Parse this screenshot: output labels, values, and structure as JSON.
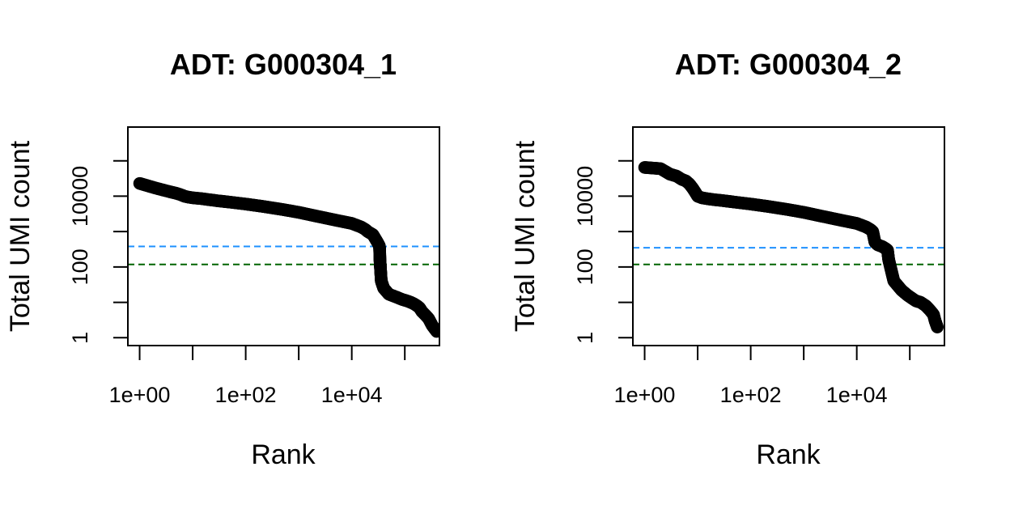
{
  "chart_data": [
    {
      "type": "scatter",
      "title": "ADT: G000304_1",
      "xlabel": "Rank",
      "ylabel": "Total UMI count",
      "x_log": true,
      "y_log": true,
      "xlim": [
        0.6,
        450000
      ],
      "ylim": [
        0.6,
        900000
      ],
      "x_ticks": [
        1,
        10,
        100,
        1000,
        10000,
        100000
      ],
      "x_tick_labels": [
        "1e+00",
        "",
        "1e+02",
        "",
        "1e+04",
        ""
      ],
      "y_ticks": [
        1,
        10,
        100,
        1000,
        10000,
        100000
      ],
      "y_tick_labels": [
        "1",
        "",
        "100",
        "",
        "10000",
        ""
      ],
      "thresholds": [
        {
          "value": 380,
          "color": "#1e90ff",
          "style": "dashed"
        },
        {
          "value": 118,
          "color": "#006400",
          "style": "dashed"
        }
      ],
      "series": [
        {
          "marker": "open-circle",
          "color": "#000000",
          "x": [
            1,
            2,
            3,
            4,
            5,
            6,
            7,
            8,
            10,
            15,
            20,
            30,
            50,
            100,
            200,
            500,
            1000,
            2000,
            5000,
            10000,
            15000,
            18000,
            20000,
            25000,
            30000,
            33000,
            33500,
            34000,
            36000,
            40000,
            50000,
            70000,
            90000,
            110000,
            130000,
            150000,
            170000,
            190000,
            210000,
            240000,
            280000,
            330000,
            400000
          ],
          "y": [
            23000,
            17000,
            14500,
            13000,
            12000,
            11000,
            10000,
            9500,
            9000,
            8500,
            8000,
            7400,
            6800,
            6000,
            5200,
            4200,
            3500,
            2800,
            2100,
            1700,
            1350,
            1150,
            1000,
            820,
            520,
            400,
            350,
            160,
            40,
            25,
            17,
            14,
            12,
            11,
            10,
            9,
            8,
            7,
            5.5,
            4.5,
            3.5,
            2.2,
            1.5
          ]
        }
      ]
    },
    {
      "type": "scatter",
      "title": "ADT: G000304_2",
      "xlabel": "Rank",
      "ylabel": "Total UMI count",
      "x_log": true,
      "y_log": true,
      "xlim": [
        0.6,
        450000
      ],
      "ylim": [
        0.6,
        900000
      ],
      "x_ticks": [
        1,
        10,
        100,
        1000,
        10000,
        100000
      ],
      "x_tick_labels": [
        "1e+00",
        "",
        "1e+02",
        "",
        "1e+04",
        ""
      ],
      "y_ticks": [
        1,
        10,
        100,
        1000,
        10000,
        100000
      ],
      "y_tick_labels": [
        "1",
        "",
        "100",
        "",
        "10000",
        ""
      ],
      "thresholds": [
        {
          "value": 350,
          "color": "#1e90ff",
          "style": "dashed"
        },
        {
          "value": 118,
          "color": "#006400",
          "style": "dashed"
        }
      ],
      "series": [
        {
          "marker": "open-circle",
          "color": "#000000",
          "x": [
            1,
            2,
            3,
            4,
            5,
            6,
            7,
            8,
            9,
            10,
            12,
            15,
            20,
            30,
            50,
            100,
            200,
            500,
            1000,
            2000,
            5000,
            10000,
            15000,
            18000,
            20000,
            21000,
            22000,
            25000,
            30000,
            35000,
            38000,
            40000,
            50000,
            70000,
            90000,
            110000,
            130000,
            160000,
            200000,
            240000,
            280000,
            300000,
            330000
          ],
          "y": [
            65000,
            60000,
            42000,
            37000,
            30000,
            27000,
            22000,
            17000,
            13000,
            10000,
            9000,
            8500,
            8000,
            7500,
            6800,
            6000,
            5200,
            4200,
            3500,
            2800,
            2100,
            1700,
            1350,
            1150,
            1000,
            700,
            500,
            420,
            380,
            330,
            300,
            160,
            40,
            22,
            16,
            13,
            11,
            10,
            8,
            6,
            4.5,
            3,
            2
          ]
        }
      ]
    }
  ]
}
